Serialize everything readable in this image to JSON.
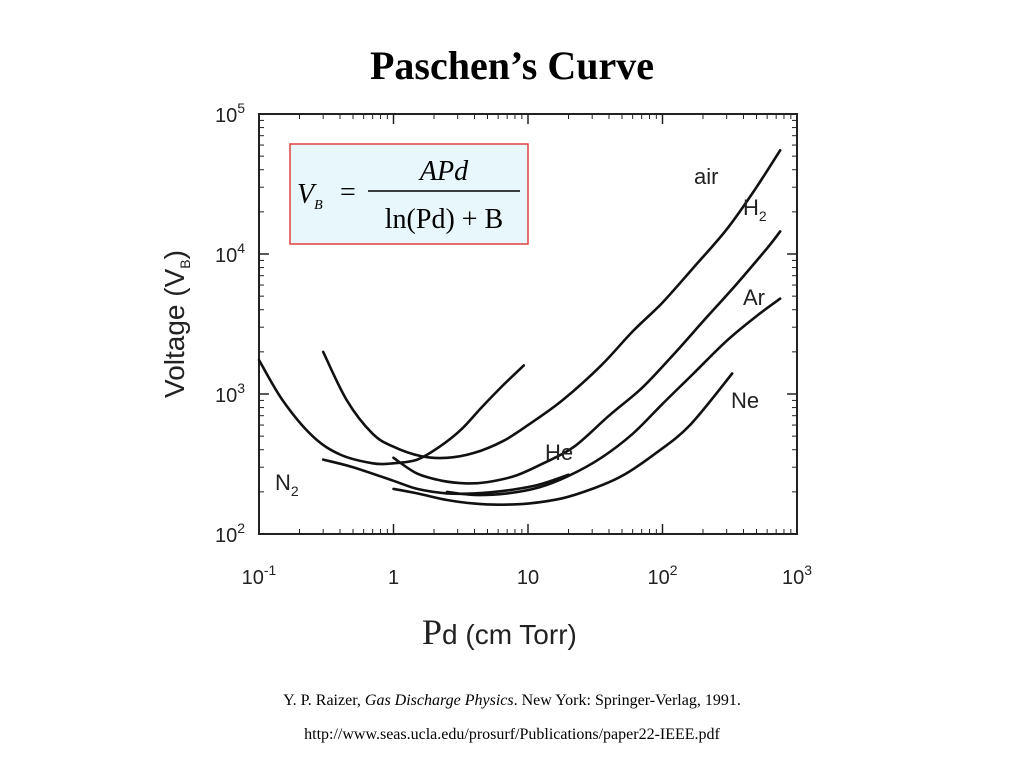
{
  "title": "Paschen’s Curve",
  "chart_data": {
    "type": "line",
    "xscale": "log",
    "yscale": "log",
    "xlim": [
      0.1,
      1000
    ],
    "ylim": [
      100,
      100000
    ],
    "x_ticks": [
      {
        "base": "10",
        "exp": "-1"
      },
      {
        "base": "1",
        "exp": ""
      },
      {
        "base": "10",
        "exp": ""
      },
      {
        "base": "10",
        "exp": "2"
      },
      {
        "base": "10",
        "exp": "3"
      }
    ],
    "y_ticks": [
      {
        "base": "10",
        "exp": "2"
      },
      {
        "base": "10",
        "exp": "3"
      },
      {
        "base": "10",
        "exp": "4"
      },
      {
        "base": "10",
        "exp": "5"
      }
    ],
    "xlabel": {
      "lead": "P",
      "rest": "d (cm Torr)"
    },
    "ylabel": {
      "main": "Voltage (V",
      "sub": "B",
      "close": ")"
    },
    "equation": {
      "lhs": "V",
      "lhs_sub": "B",
      "eq": "=",
      "numerator": "APd",
      "denominator": "ln(Pd) + B"
    },
    "grid": false,
    "series": [
      {
        "name": "air",
        "sub": "",
        "x": [
          0.3,
          0.45,
          0.7,
          1.0,
          1.6,
          2.5,
          4.0,
          6.5,
          10,
          18,
          35,
          60,
          100,
          170,
          300,
          500,
          750
        ],
        "y": [
          2000,
          900,
          520,
          420,
          360,
          350,
          380,
          460,
          600,
          900,
          1600,
          2800,
          4500,
          8000,
          15000,
          30000,
          55000
        ]
      },
      {
        "name": "H",
        "sub": "2",
        "x": [
          1.0,
          1.5,
          2.3,
          3.5,
          5.0,
          8,
          13,
          22,
          40,
          70,
          120,
          200,
          350,
          600,
          750
        ],
        "y": [
          350,
          270,
          240,
          230,
          235,
          260,
          320,
          420,
          700,
          1100,
          1900,
          3300,
          6000,
          11000,
          14500
        ]
      },
      {
        "name": "Ar",
        "sub": "",
        "x": [
          2.5,
          4,
          7,
          12,
          20,
          35,
          60,
          100,
          170,
          300,
          500,
          750
        ],
        "y": [
          200,
          190,
          195,
          215,
          260,
          350,
          520,
          850,
          1400,
          2400,
          3600,
          4800
        ]
      },
      {
        "name": "Ne",
        "sub": "",
        "x": [
          1.0,
          1.5,
          2.5,
          4.0,
          6,
          10,
          18,
          30,
          50,
          90,
          160,
          330
        ],
        "y": [
          210,
          195,
          175,
          165,
          162,
          165,
          180,
          210,
          260,
          380,
          600,
          1400
        ]
      },
      {
        "name": "He",
        "sub": "",
        "x": [
          0.3,
          0.5,
          1.0,
          1.5,
          2.5,
          4,
          7,
          12,
          20
        ],
        "y": [
          340,
          300,
          240,
          210,
          195,
          195,
          205,
          225,
          265
        ]
      },
      {
        "name": "N",
        "sub": "2",
        "x": [
          0.1,
          0.15,
          0.25,
          0.4,
          0.7,
          1.0,
          1.5,
          2.2,
          3.2,
          4.5,
          6.5,
          9.3
        ],
        "y": [
          1750,
          900,
          500,
          370,
          320,
          320,
          340,
          420,
          560,
          800,
          1150,
          1600
        ]
      }
    ]
  },
  "citation": {
    "author": "Y. P. Raizer, ",
    "book": "Gas Discharge Physics",
    "publisher": ". New York: Springer-Verlag, 1991."
  },
  "url": "http://www.seas.ucla.edu/prosurf/Publications/paper22-IEEE.pdf"
}
